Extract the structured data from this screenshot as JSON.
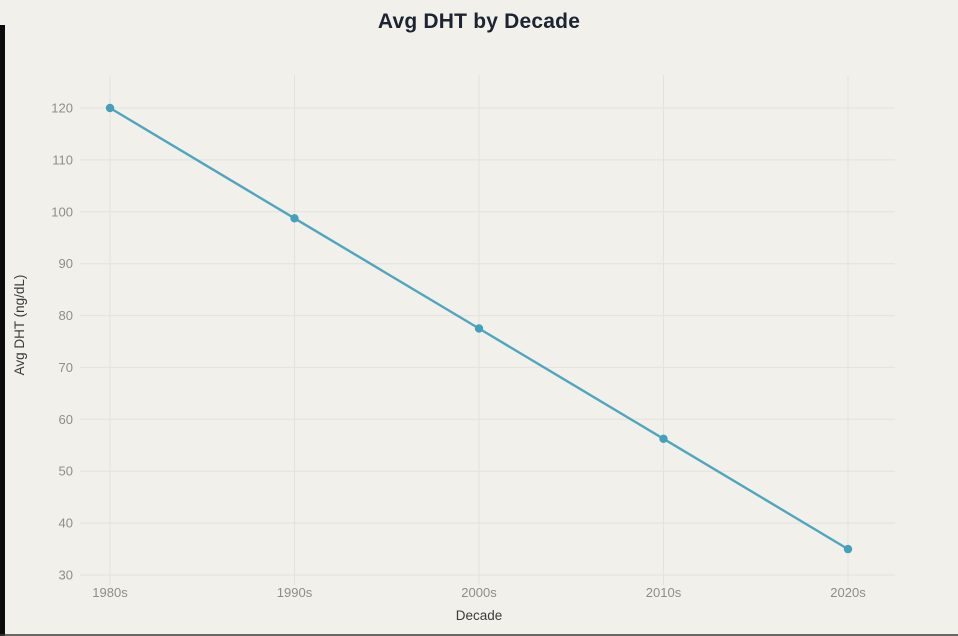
{
  "chart_data": {
    "type": "line",
    "title": "Avg DHT by Decade",
    "xlabel": "Decade",
    "ylabel": "Avg DHT (ng/dL)",
    "categories": [
      "1980s",
      "1990s",
      "2000s",
      "2010s",
      "2020s"
    ],
    "values": [
      120,
      98.75,
      77.5,
      56.25,
      35
    ],
    "ylim": [
      30,
      120
    ],
    "ytick_step": 10,
    "yticks": [
      30,
      40,
      50,
      60,
      70,
      80,
      90,
      100,
      110,
      120
    ],
    "grid": true,
    "legend": "none",
    "marker": "circle",
    "colors": {
      "line": "#4fa6be",
      "marker": "#45a0ba",
      "background": "#f1f0eb",
      "grid": "#e3e2dc",
      "title": "#1b2430",
      "tick_label": "#8e8e89",
      "axis_label": "#3c3c3a"
    }
  }
}
